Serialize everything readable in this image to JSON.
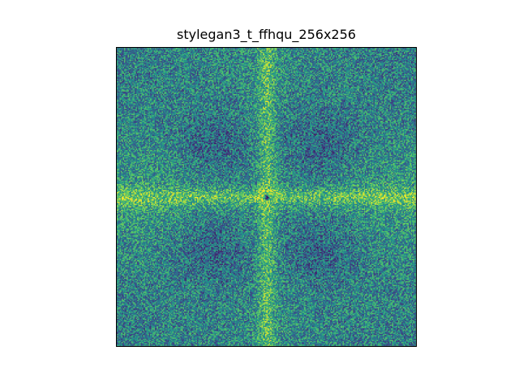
{
  "chart_data": {
    "type": "heatmap",
    "title": "stylegan3_t_ffhqu_256x256",
    "xlabel": "",
    "ylabel": "",
    "grid": false,
    "axis_ticks": false,
    "colormap": "viridis",
    "colormap_stops": [
      "#440154",
      "#3b528b",
      "#21918c",
      "#5ec962",
      "#fde725"
    ],
    "resolution": [
      256,
      256
    ],
    "description_of_values": "2D Fourier power spectrum (log magnitude), DC centered",
    "features": {
      "center_dc": "dark purple dip at exact center",
      "horizontal_band": "bright yellow-green band along central row",
      "vertical_band": "bright yellow-green band along central column",
      "quadrants": "darker blue-teal diamond regions between axes",
      "corners": "noisy blue-teal with speckle",
      "edges": "yellow-green brighter near mid-edges"
    }
  }
}
